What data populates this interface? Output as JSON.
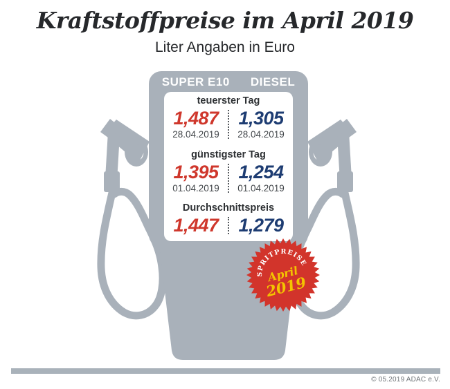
{
  "header": {
    "title": "Kraftstoffpreise im April 2019",
    "subtitle": "Liter Angaben in Euro"
  },
  "pump": {
    "columns": [
      "SUPER E10",
      "DIESEL"
    ],
    "sections": [
      {
        "label": "teuerster Tag",
        "super_price": "1,487",
        "super_date": "28.04.2019",
        "diesel_price": "1,305",
        "diesel_date": "28.04.2019"
      },
      {
        "label": "günstigster Tag",
        "super_price": "1,395",
        "super_date": "01.04.2019",
        "diesel_price": "1,254",
        "diesel_date": "01.04.2019"
      },
      {
        "label": "Durchschnittspreis",
        "super_price": "1,447",
        "diesel_price": "1,279"
      }
    ]
  },
  "badge": {
    "arc_text": "SPRITPREISE",
    "line1": "April",
    "line2": "2019"
  },
  "footer": {
    "copyright": "© 05.2019 ADAC e.V."
  },
  "colors": {
    "super_e10_red": "#cf372c",
    "diesel_blue": "#1d3c72",
    "pump_gray": "#a9b1ba",
    "badge_red": "#d2342b",
    "badge_yellow": "#f3c400"
  },
  "chart_data": {
    "type": "table",
    "title": "Kraftstoffpreise im April 2019",
    "subtitle": "Liter Angaben in Euro",
    "unit": "Euro per liter",
    "columns": [
      "SUPER E10",
      "DIESEL"
    ],
    "rows": [
      {
        "label": "teuerster Tag",
        "super_e10": 1.487,
        "diesel": 1.305,
        "super_e10_date": "28.04.2019",
        "diesel_date": "28.04.2019"
      },
      {
        "label": "günstigster Tag",
        "super_e10": 1.395,
        "diesel": 1.254,
        "super_e10_date": "01.04.2019",
        "diesel_date": "01.04.2019"
      },
      {
        "label": "Durchschnittspreis",
        "super_e10": 1.447,
        "diesel": 1.279
      }
    ],
    "source_badge": "SPRITPREISE April 2019"
  }
}
